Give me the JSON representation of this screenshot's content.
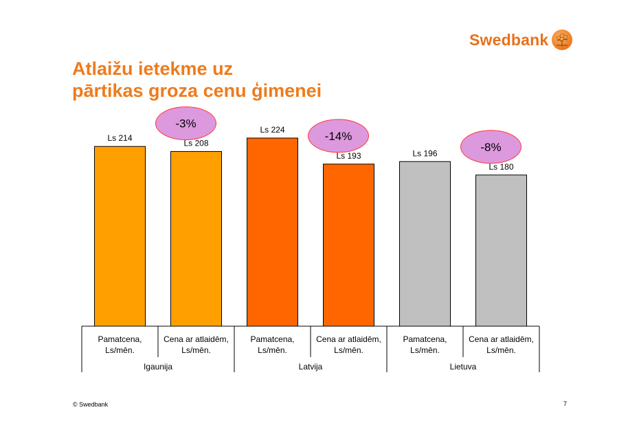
{
  "header": {
    "brand": "Swedbank",
    "title_lines": [
      "Atlaižu ietekme uz",
      "pārtikas groza cenu ģimenei"
    ]
  },
  "chart_data": {
    "type": "bar",
    "bars": [
      {
        "value": 214,
        "label": "Ls 214",
        "category": [
          "Pamatcena,",
          "Ls/mēn."
        ],
        "color": "#ffa000"
      },
      {
        "value": 208,
        "label": "Ls 208",
        "category": [
          "Cena ar atlaidēm,",
          "Ls/mēn."
        ],
        "color": "#ffa000"
      },
      {
        "value": 224,
        "label": "Ls 224",
        "category": [
          "Pamatcena,",
          "Ls/mēn."
        ],
        "color": "#ff6600"
      },
      {
        "value": 193,
        "label": "Ls 193",
        "category": [
          "Cena ar atlaidēm,",
          "Ls/mēn."
        ],
        "color": "#ff6600"
      },
      {
        "value": 196,
        "label": "Ls 196",
        "category": [
          "Pamatcena,",
          "Ls/mēn."
        ],
        "color": "#c0c0c0"
      },
      {
        "value": 180,
        "label": "Ls 180",
        "category": [
          "Cena ar atlaidēm,",
          "Ls/mēn."
        ],
        "color": "#c0c0c0"
      }
    ],
    "groups": [
      "Igaunija",
      "Latvija",
      "Lietuva"
    ],
    "annotations": [
      "-3%",
      "-14%",
      "-8%"
    ],
    "annotation_color": "#dd99dd",
    "ylim": [
      0,
      224
    ]
  },
  "footer": {
    "copyright": "© Swedbank",
    "page_number": "7"
  }
}
